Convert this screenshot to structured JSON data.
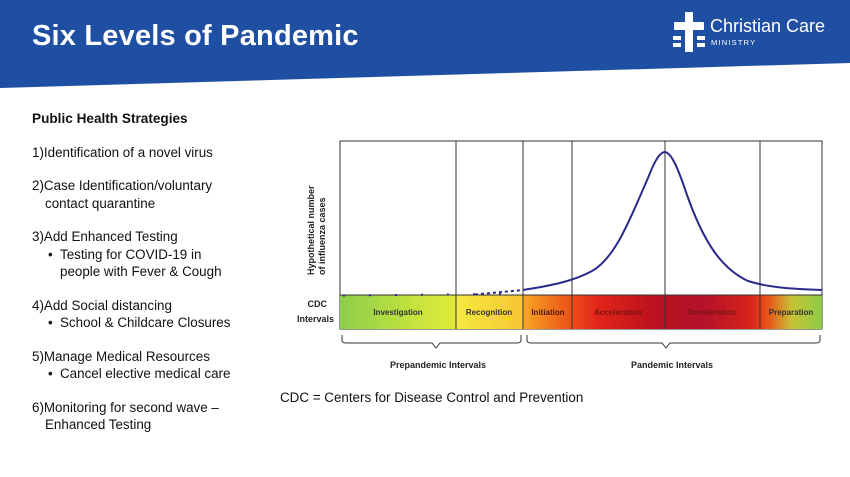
{
  "slide": {
    "title": "Six Levels of Pandemic",
    "brand": {
      "accent": "#1f4fa3",
      "white": "#ffffff"
    }
  },
  "logo": {
    "name": "Christian Care",
    "subtitle": "MINISTRY",
    "icon": "cross-icon"
  },
  "strategies": {
    "heading": "Public Health Strategies",
    "items": [
      {
        "label": "1)Identification of a novel virus"
      },
      {
        "label": "2)Case Identification/voluntary",
        "continuation": "contact quarantine"
      },
      {
        "label": "3)Add Enhanced Testing",
        "bullet": "Testing for COVID-19 in",
        "bullet_cont": "people with Fever & Cough"
      },
      {
        "label": "4)Add Social distancing",
        "bullet": "School & Childcare Closures"
      },
      {
        "label": "5)Manage Medical Resources",
        "bullet": "Cancel elective medical care"
      },
      {
        "label": "6)Monitoring for second wave –",
        "continuation": "Enhanced Testing"
      }
    ]
  },
  "chart_data": {
    "type": "area",
    "ylabel": "Hypothetical number of influenza cases",
    "band_label": "CDC Intervals",
    "intervals": [
      {
        "name": "Investigation",
        "group": "Prepandemic Intervals",
        "color": "#c9e63b"
      },
      {
        "name": "Recognition",
        "group": "Prepandemic Intervals",
        "color": "#f1e640"
      },
      {
        "name": "Initiation",
        "group": "Pandemic Intervals",
        "color": "#f07a1a"
      },
      {
        "name": "Acceleration",
        "group": "Pandemic Intervals",
        "color": "#c8121e"
      },
      {
        "name": "Deceleration",
        "group": "Pandemic Intervals",
        "color": "#c0122a"
      },
      {
        "name": "Preparation",
        "group": "Pandemic Intervals",
        "color": "#a8cf3c"
      }
    ],
    "groups": [
      "Prepandemic Intervals",
      "Pandemic Intervals"
    ],
    "curve": "epidemic curve: flat through prepandemic intervals, rises in initiation and acceleration, peaks at end of acceleration, declines through deceleration, levels in preparation",
    "footnote": "CDC = Centers for Disease Control and Prevention"
  }
}
